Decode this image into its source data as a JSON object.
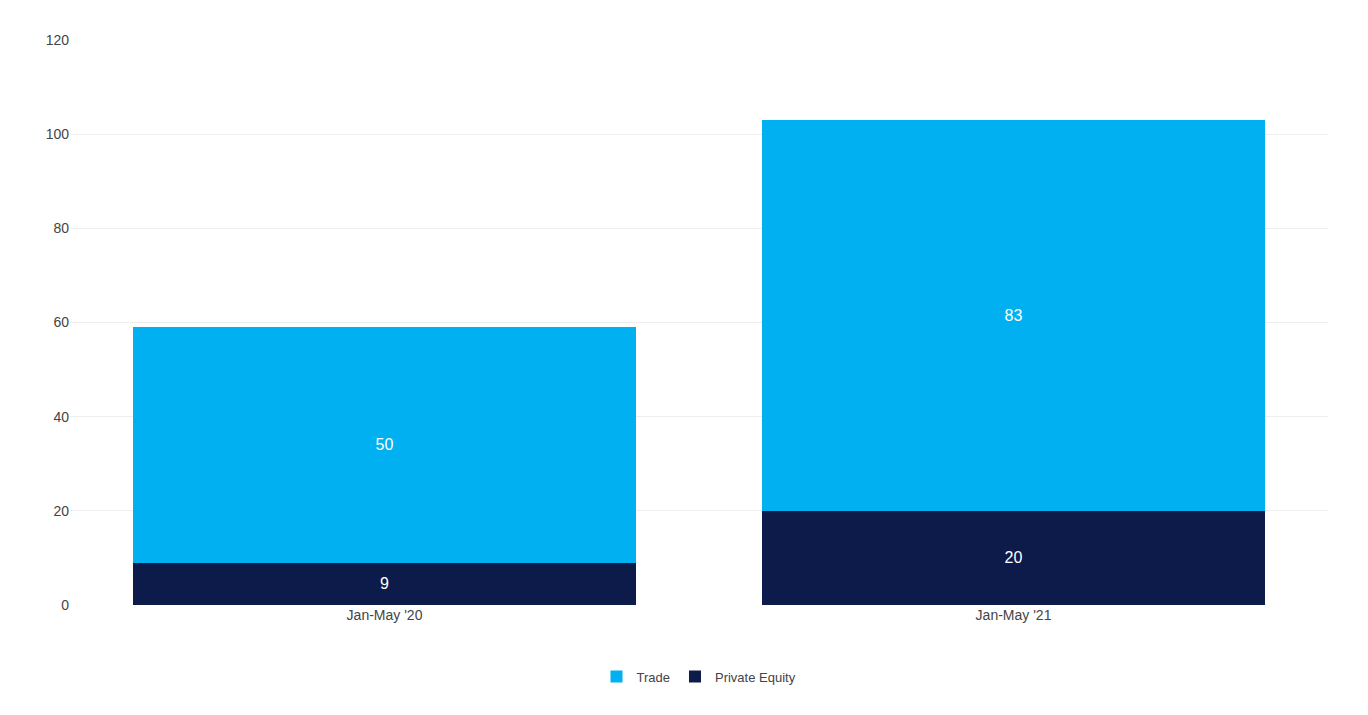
{
  "chart_data": {
    "type": "bar",
    "stacked": true,
    "categories": [
      "Jan-May '20",
      "Jan-May '21"
    ],
    "series": [
      {
        "name": "Private Equity",
        "color": "#0d1b4b",
        "values": [
          9,
          20
        ]
      },
      {
        "name": "Trade",
        "color": "#00b0f0",
        "values": [
          50,
          83
        ]
      }
    ],
    "ylim": [
      0,
      120
    ],
    "yticks": [
      0,
      20,
      40,
      60,
      80,
      100,
      120
    ],
    "grid": true,
    "data_labels": true,
    "legend": "bottom"
  }
}
